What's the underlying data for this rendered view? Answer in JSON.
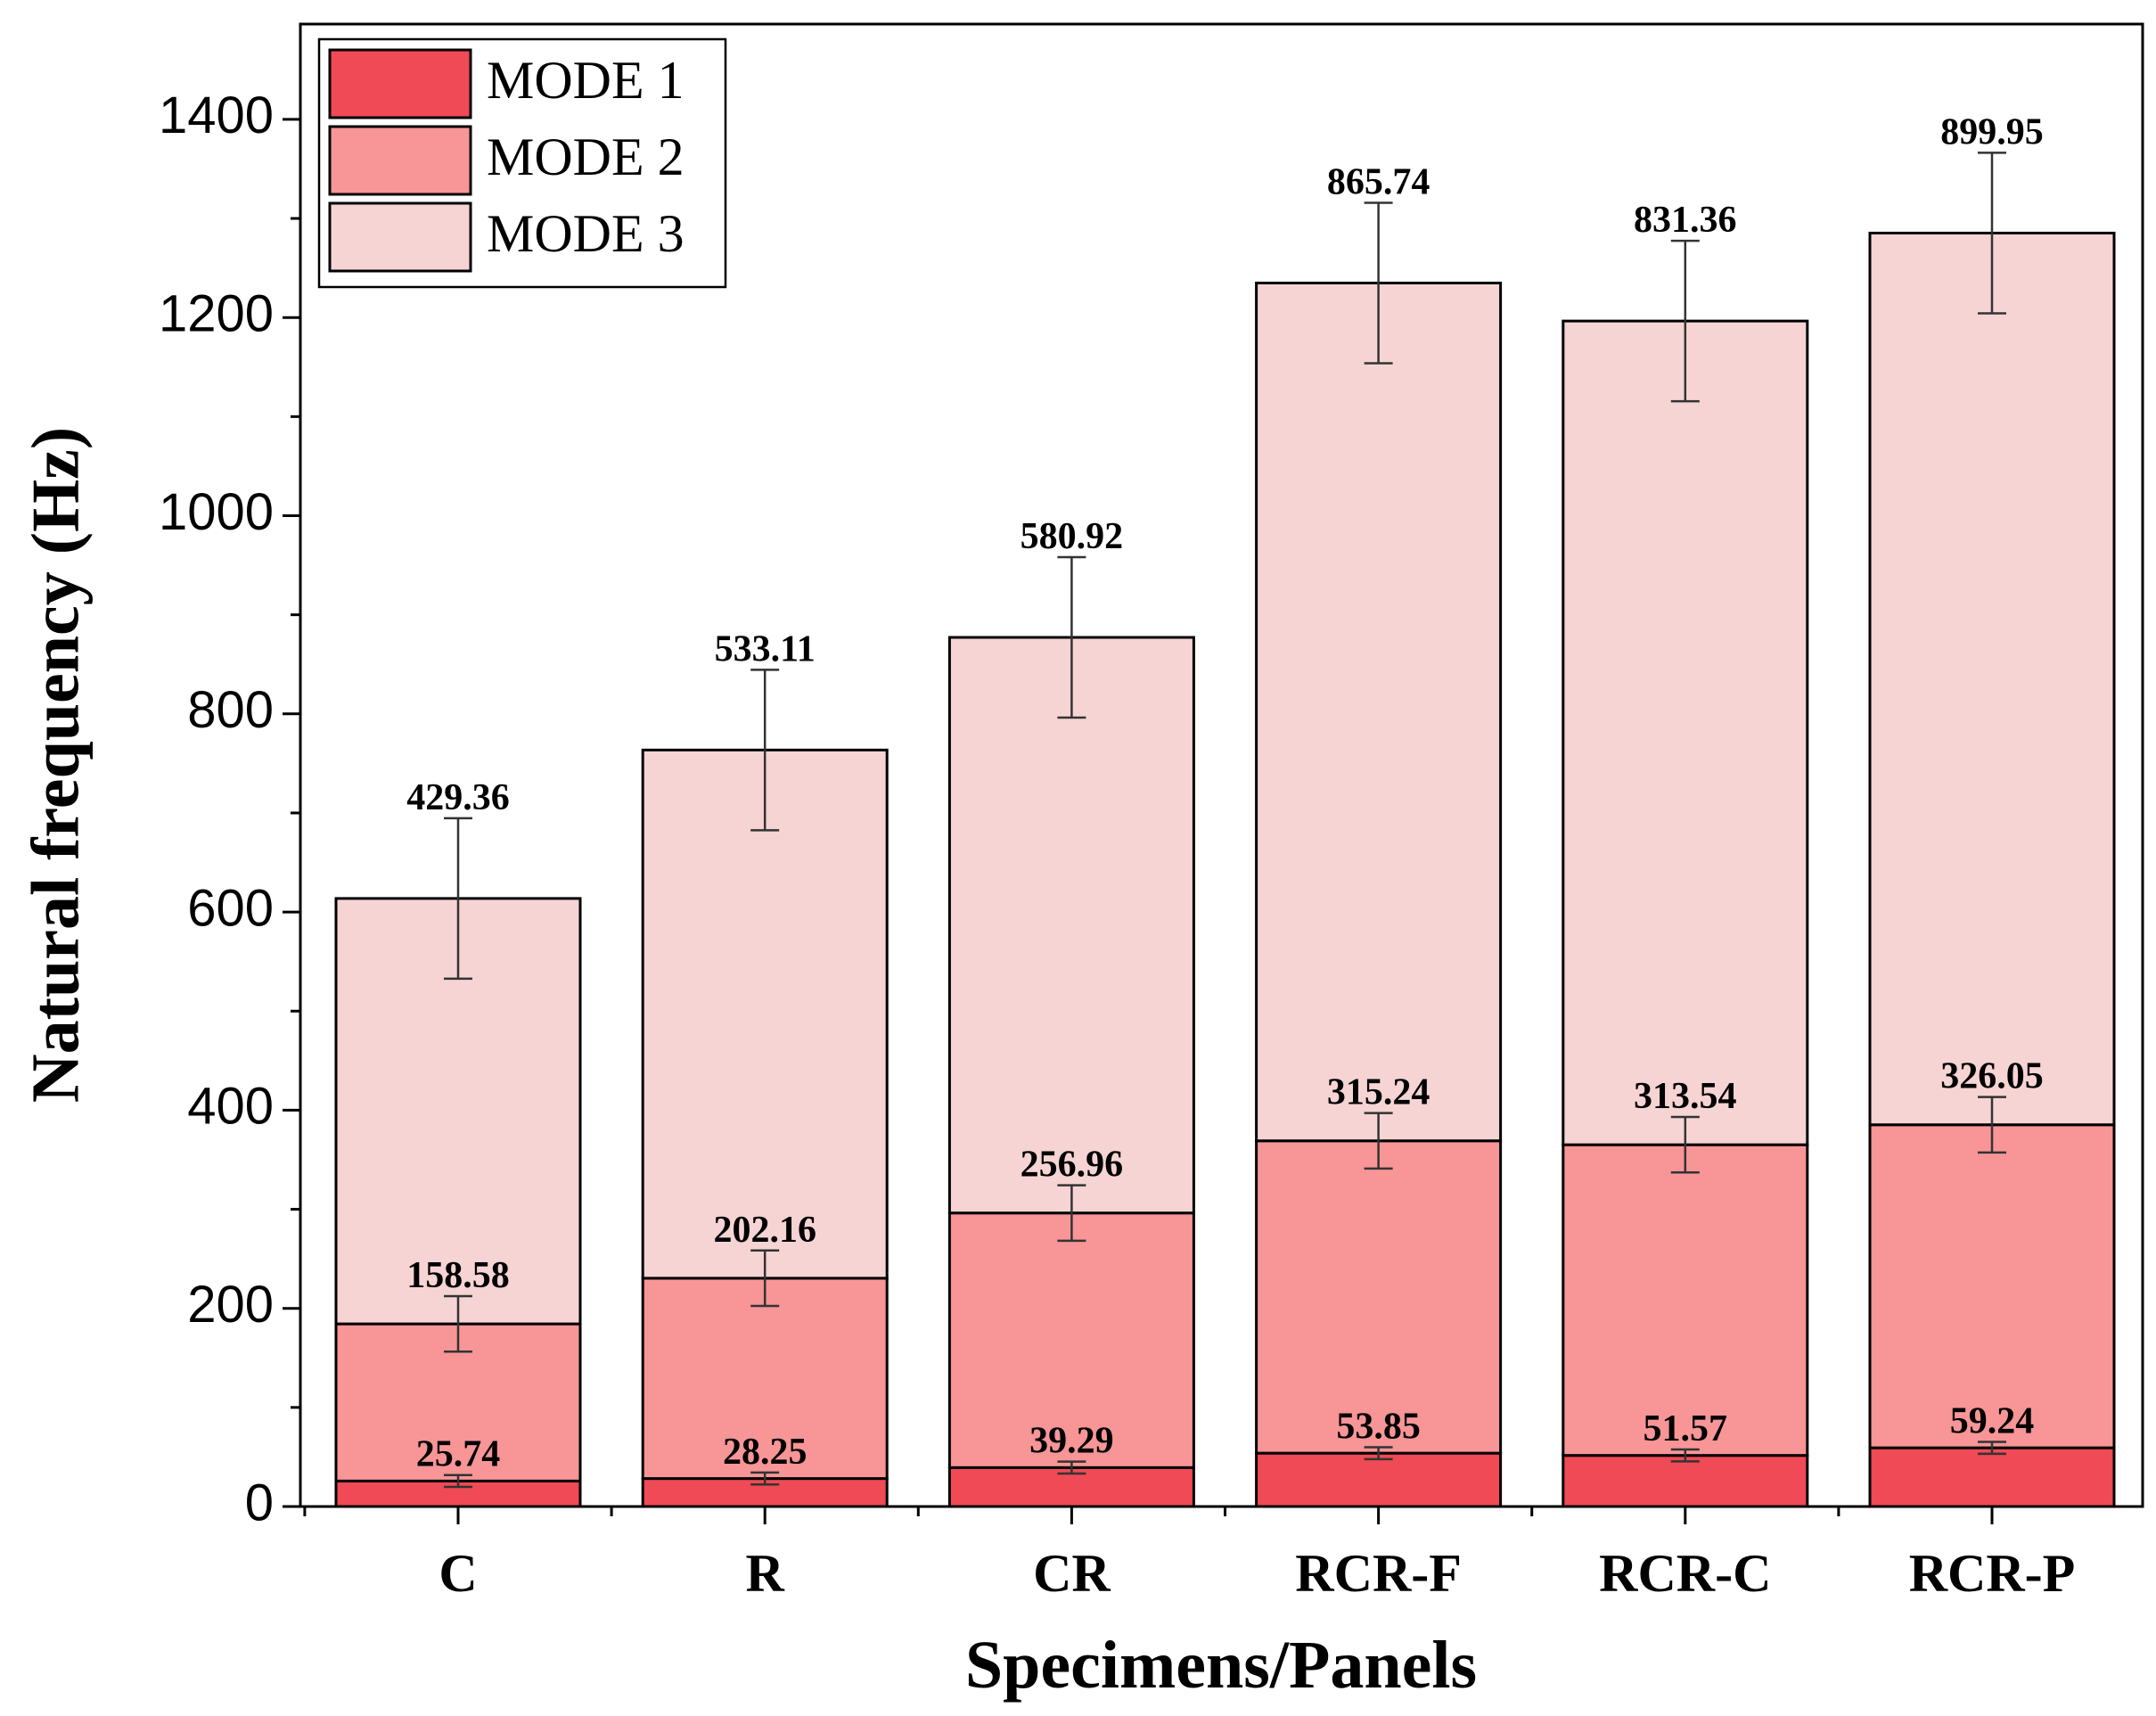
{
  "chart_data": {
    "type": "bar",
    "stacked": true,
    "title": "",
    "xlabel": "Specimens/Panels",
    "ylabel": "Natural frequency (Hz)",
    "ylim": [
      0,
      1500
    ],
    "yticks": [
      0,
      200,
      400,
      600,
      800,
      1000,
      1200,
      1400
    ],
    "categories": [
      "C",
      "R",
      "CR",
      "RCR-F",
      "RCR-C",
      "RCR-P"
    ],
    "series": [
      {
        "name": "MODE 1",
        "color": "#ef4a55",
        "values": [
          25.74,
          28.25,
          39.29,
          53.85,
          51.57,
          59.24
        ],
        "error": [
          6,
          6,
          6,
          6,
          6,
          6
        ]
      },
      {
        "name": "MODE 2",
        "color": "#f79597",
        "values": [
          158.58,
          202.16,
          256.96,
          315.24,
          313.54,
          326.05
        ],
        "error": [
          28,
          28,
          28,
          28,
          28,
          28
        ]
      },
      {
        "name": "MODE 3",
        "color": "#f6d4d4",
        "values": [
          429.36,
          533.11,
          580.92,
          865.74,
          831.36,
          899.95
        ],
        "error": [
          81,
          81,
          81,
          81,
          81,
          81
        ]
      }
    ],
    "legend_position": "top-left"
  }
}
